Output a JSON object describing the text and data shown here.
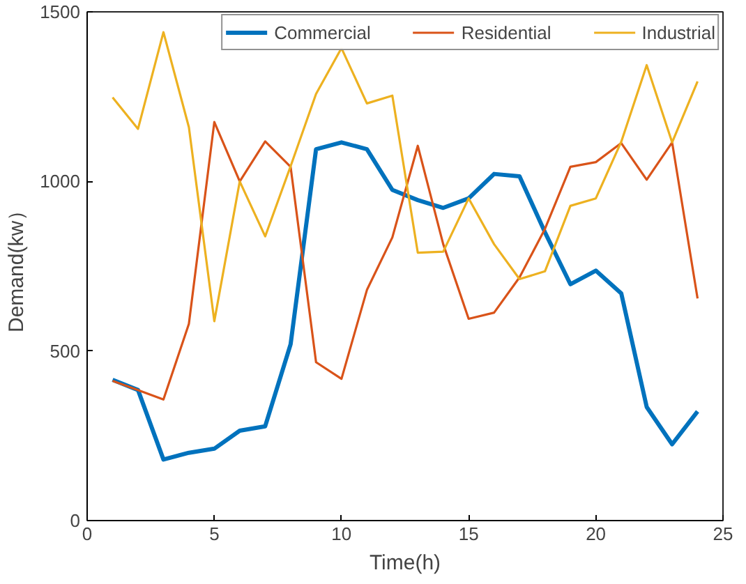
{
  "chart_data": {
    "type": "line",
    "xlabel": "Time(h)",
    "ylabel": "Demand(kw）",
    "x": [
      1,
      2,
      3,
      4,
      5,
      6,
      7,
      8,
      9,
      10,
      11,
      12,
      13,
      14,
      15,
      16,
      17,
      18,
      19,
      20,
      21,
      22,
      23,
      24
    ],
    "xlim": [
      0,
      25
    ],
    "xticks": [
      0,
      5,
      10,
      15,
      20,
      25
    ],
    "ylim": [
      0,
      1500
    ],
    "yticks": [
      0,
      500,
      1000,
      1500
    ],
    "grid": false,
    "legend": "top right",
    "marker": "none",
    "line_style": "solid",
    "series": [
      {
        "name": "Commercial",
        "color": "#0072bd",
        "values": [
          415,
          385,
          180,
          200,
          212,
          265,
          278,
          520,
          1095,
          1115,
          1095,
          975,
          945,
          922,
          950,
          1022,
          1015,
          850,
          697,
          737,
          670,
          335,
          225,
          322
        ]
      },
      {
        "name": "Residential",
        "color": "#d95319",
        "values": [
          412,
          385,
          357,
          580,
          1175,
          1000,
          1118,
          1043,
          467,
          418,
          680,
          835,
          1105,
          815,
          595,
          613,
          717,
          860,
          1043,
          1057,
          1113,
          1005,
          1115,
          655
        ]
      },
      {
        "name": "Industrial",
        "color": "#edb120",
        "values": [
          1248,
          1155,
          1440,
          1160,
          588,
          1000,
          838,
          1045,
          1258,
          1393,
          1230,
          1253,
          790,
          793,
          950,
          815,
          712,
          735,
          928,
          950,
          1117,
          1343,
          1115,
          1295
        ]
      }
    ]
  }
}
